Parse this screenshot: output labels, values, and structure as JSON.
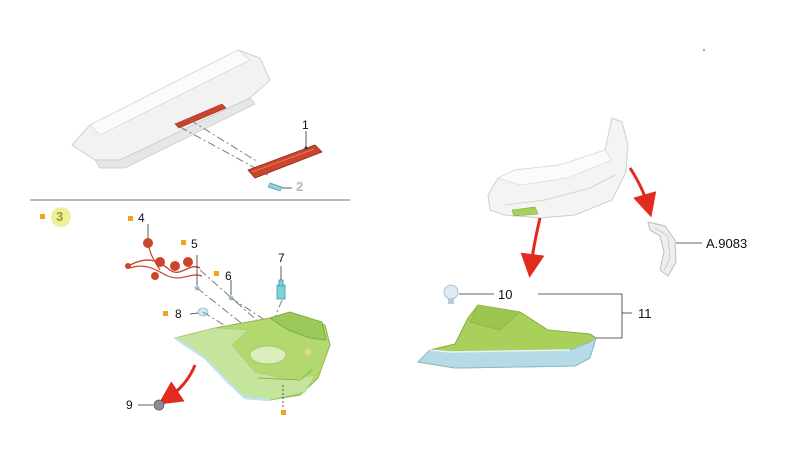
{
  "labels": {
    "l1": "1",
    "l2": "2",
    "l3": "3",
    "l4": "4",
    "l5": "5",
    "l6": "6",
    "l7": "7",
    "l8": "8",
    "l9": "9",
    "l10": "10",
    "l11": "11",
    "ref": "A.9083"
  },
  "colors": {
    "part_red": "#c9452c",
    "lamp_green": "#a8d05a",
    "lens_blue": "#b6dbe6",
    "arrow_red": "#e22b1e",
    "marker_orange": "#f3a21c",
    "line_gray": "#7d7d7d"
  }
}
